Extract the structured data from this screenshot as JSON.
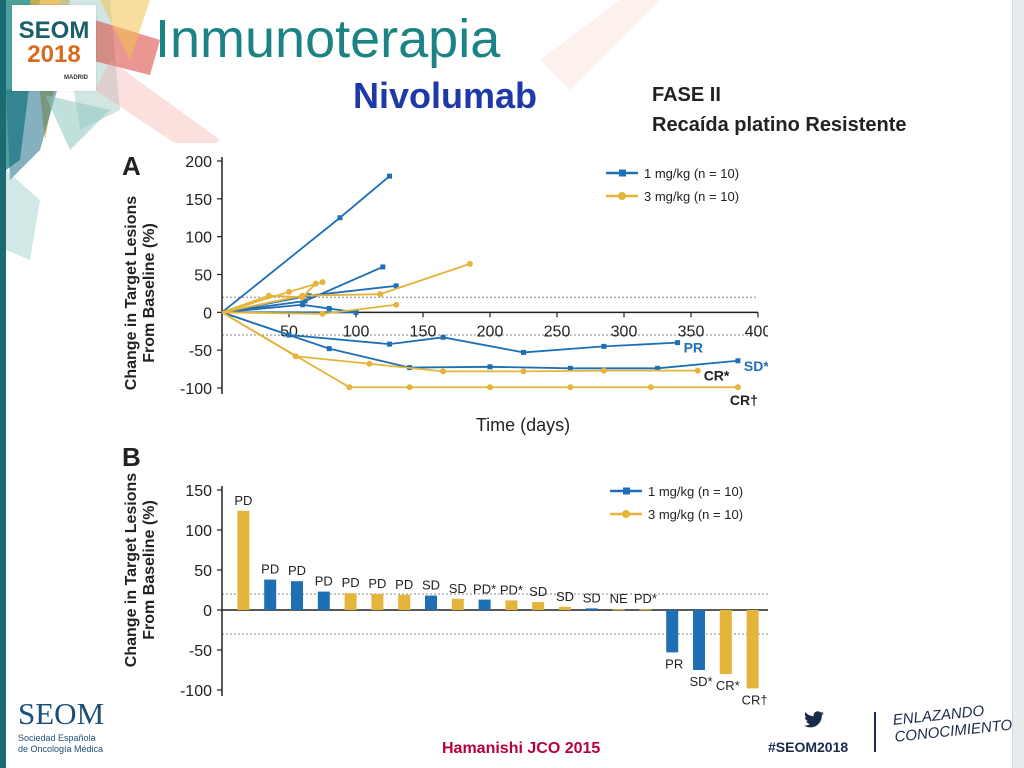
{
  "header": {
    "title": "Inmunoterapia",
    "subtitle": "Nivolumab",
    "phase": "FASE II",
    "indication": "Recaída platino Resistente"
  },
  "logo_top": {
    "line1": "SEOM",
    "line2": "2018",
    "line3": "MADRID"
  },
  "footer": {
    "citation": "Hamanishi JCO 2015",
    "hashtag": "#SEOM2018",
    "org_name": "SEOM",
    "org_line1": "Sociedad Española",
    "org_line2": "de Oncología Médica",
    "slogan_line1": "ENLAZANDO",
    "slogan_line2": "CONOCIMIENTO"
  },
  "icons": {
    "twitter": "twitter-bird-icon"
  },
  "colors": {
    "blue": "#1f6fb5",
    "gold": "#e5b43a",
    "title": "#1b8383",
    "subtitle": "#1f3aa8",
    "citation": "#b8003a"
  },
  "chart_data": [
    {
      "type": "line",
      "panel_label": "A",
      "xlabel": "Time (days)",
      "ylabel": "Change in Target Lesions From Baseline (%)",
      "xlim": [
        0,
        400
      ],
      "ylim": [
        -100,
        200
      ],
      "xticks": [
        50,
        100,
        150,
        200,
        250,
        300,
        350,
        400
      ],
      "yticks": [
        200,
        150,
        100,
        50,
        0,
        -50,
        -100
      ],
      "reference_lines": [
        20,
        -30
      ],
      "legend_position": "top-right",
      "series": [
        {
          "name": "1 mg/kg (n = 10)",
          "color": "#1f6fb5",
          "lines": [
            {
              "points": [
                [
                  0,
                  0
                ],
                [
                  88,
                  125
                ],
                [
                  125,
                  180
                ]
              ]
            },
            {
              "points": [
                [
                  0,
                  0
                ],
                [
                  62,
                  15
                ],
                [
                  120,
                  60
                ]
              ]
            },
            {
              "points": [
                [
                  0,
                  0
                ],
                [
                  65,
                  22
                ],
                [
                  130,
                  35
                ]
              ]
            },
            {
              "points": [
                [
                  0,
                  0
                ],
                [
                  60,
                  10
                ],
                [
                  80,
                  5
                ],
                [
                  100,
                  0
                ]
              ]
            },
            {
              "points": [
                [
                  0,
                  0
                ],
                [
                  100,
                  0
                ]
              ]
            },
            {
              "points": [
                [
                  0,
                  0
                ],
                [
                  50,
                  -30
                ],
                [
                  125,
                  -42
                ],
                [
                  165,
                  -33
                ],
                [
                  225,
                  -53
                ],
                [
                  285,
                  -45
                ],
                [
                  340,
                  -40
                ]
              ],
              "end_label": "PR"
            },
            {
              "points": [
                [
                  0,
                  0
                ],
                [
                  80,
                  -48
                ],
                [
                  140,
                  -73
                ],
                [
                  200,
                  -72
                ],
                [
                  260,
                  -74
                ],
                [
                  325,
                  -74
                ],
                [
                  385,
                  -64
                ]
              ],
              "end_label": "SD*"
            }
          ]
        },
        {
          "name": "3 mg/kg (n = 10)",
          "color": "#e5b43a",
          "lines": [
            {
              "points": [
                [
                  0,
                  0
                ],
                [
                  35,
                  22
                ],
                [
                  60,
                  20
                ],
                [
                  70,
                  38
                ]
              ]
            },
            {
              "points": [
                [
                  0,
                  0
                ],
                [
                  50,
                  27
                ],
                [
                  75,
                  40
                ]
              ]
            },
            {
              "points": [
                [
                  0,
                  0
                ],
                [
                  60,
                  22
                ],
                [
                  118,
                  24
                ],
                [
                  185,
                  64
                ]
              ]
            },
            {
              "points": [
                [
                  0,
                  0
                ],
                [
                  75,
                  -2
                ],
                [
                  130,
                  10
                ]
              ]
            },
            {
              "points": [
                [
                  0,
                  0
                ],
                [
                  55,
                  -58
                ],
                [
                  110,
                  -68
                ],
                [
                  165,
                  -78
                ],
                [
                  225,
                  -78
                ],
                [
                  285,
                  -77
                ],
                [
                  355,
                  -77
                ]
              ],
              "end_label": "CR*"
            },
            {
              "points": [
                [
                  0,
                  0
                ],
                [
                  95,
                  -99
                ],
                [
                  140,
                  -99
                ],
                [
                  200,
                  -99
                ],
                [
                  260,
                  -99
                ],
                [
                  320,
                  -99
                ],
                [
                  385,
                  -99
                ]
              ],
              "end_label": "CR†"
            }
          ]
        }
      ]
    },
    {
      "type": "bar",
      "panel_label": "B",
      "ylabel": "Change in Target Lesions From Baseline (%)",
      "ylim": [
        -100,
        150
      ],
      "yticks": [
        150,
        100,
        50,
        0,
        -50,
        -100
      ],
      "reference_lines": [
        20,
        -30
      ],
      "legend_position": "top-right",
      "legend": [
        {
          "name": "1 mg/kg (n = 10)",
          "color": "#1f6fb5"
        },
        {
          "name": "3 mg/kg (n = 10)",
          "color": "#e5b43a"
        }
      ],
      "bars": [
        {
          "value": 124,
          "dose": "3 mg/kg",
          "label": "PD"
        },
        {
          "value": 38,
          "dose": "1 mg/kg",
          "label": "PD"
        },
        {
          "value": 36,
          "dose": "1 mg/kg",
          "label": "PD"
        },
        {
          "value": 23,
          "dose": "1 mg/kg",
          "label": "PD"
        },
        {
          "value": 21,
          "dose": "3 mg/kg",
          "label": "PD"
        },
        {
          "value": 20,
          "dose": "3 mg/kg",
          "label": "PD"
        },
        {
          "value": 19,
          "dose": "3 mg/kg",
          "label": "PD"
        },
        {
          "value": 18,
          "dose": "1 mg/kg",
          "label": "SD"
        },
        {
          "value": 14,
          "dose": "3 mg/kg",
          "label": "SD"
        },
        {
          "value": 13,
          "dose": "1 mg/kg",
          "label": "PD*"
        },
        {
          "value": 12,
          "dose": "3 mg/kg",
          "label": "PD*"
        },
        {
          "value": 10,
          "dose": "3 mg/kg",
          "label": "SD"
        },
        {
          "value": 4,
          "dose": "3 mg/kg",
          "label": "SD"
        },
        {
          "value": 2,
          "dose": "1 mg/kg",
          "label": "SD"
        },
        {
          "value": 1,
          "dose": "3 mg/kg",
          "label": "NE"
        },
        {
          "value": 1,
          "dose": "3 mg/kg",
          "label": "PD*"
        },
        {
          "value": -53,
          "dose": "1 mg/kg",
          "label": "PR"
        },
        {
          "value": -75,
          "dose": "1 mg/kg",
          "label": "SD*"
        },
        {
          "value": -80,
          "dose": "3 mg/kg",
          "label": "CR*"
        },
        {
          "value": -98,
          "dose": "3 mg/kg",
          "label": "CR†"
        }
      ]
    }
  ]
}
